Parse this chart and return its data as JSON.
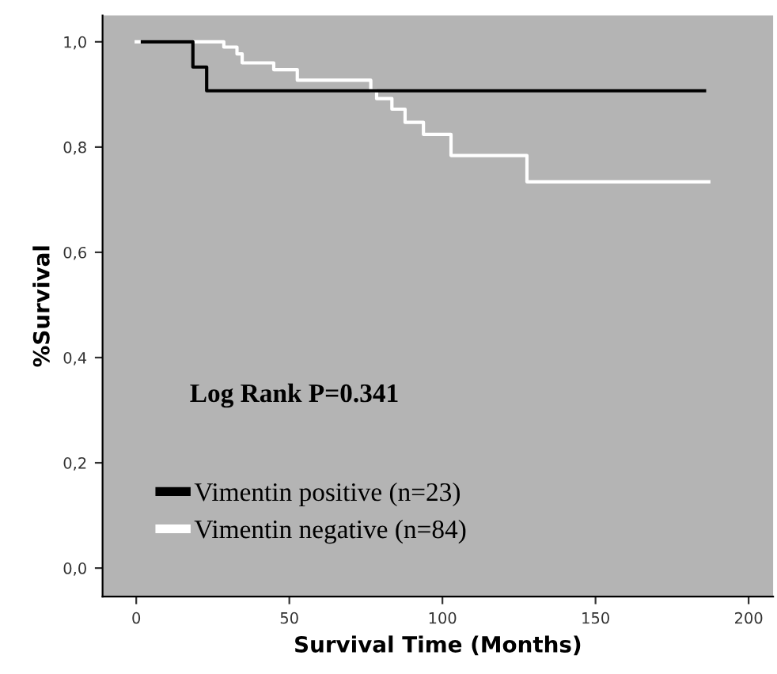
{
  "chart_data": {
    "type": "step",
    "xlabel": "Survival Time (Months)",
    "ylabel": "%Survival",
    "xlim": [
      -11,
      208
    ],
    "xticks": [
      0,
      50,
      100,
      150,
      200
    ],
    "ylim": [
      -0.054,
      1.05
    ],
    "yticks": [
      {
        "value": 0.0,
        "label": "0,0"
      },
      {
        "value": 0.2,
        "label": "0,2"
      },
      {
        "value": 0.4,
        "label": "0,4"
      },
      {
        "value": 0.6,
        "label": "0,6"
      },
      {
        "value": 0.8,
        "label": "0,8"
      },
      {
        "value": 1.0,
        "label": "1,0"
      }
    ],
    "grid": false,
    "legend": "bottom left",
    "marker": "none",
    "line_style": "solid",
    "annotations": [
      "Log Rank P=0.341"
    ],
    "series": [
      {
        "name": "Vimentin positive (n=23)",
        "color": "#000000",
        "x": [
          2,
          18.5,
          23,
          185.6
        ],
        "values": [
          1.0,
          0.952,
          0.907,
          0.907
        ]
      },
      {
        "name": "Vimentin negative (n=84)",
        "color": "#ffffff",
        "x": [
          0,
          28.6,
          32.9,
          34.6,
          44.9,
          52.6,
          76.6,
          78.5,
          83.5,
          87.8,
          93.8,
          102.8,
          127.6,
          187
        ],
        "values": [
          1.0,
          0.99,
          0.977,
          0.96,
          0.947,
          0.927,
          0.907,
          0.892,
          0.872,
          0.847,
          0.824,
          0.784,
          0.734,
          0.734
        ]
      }
    ]
  }
}
